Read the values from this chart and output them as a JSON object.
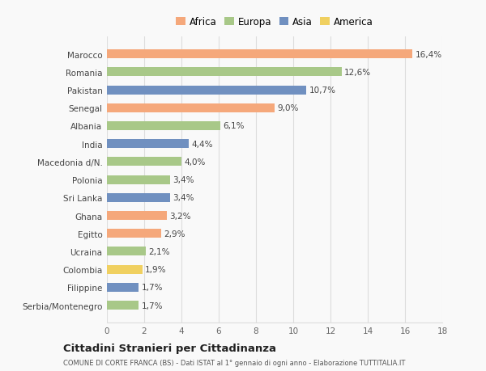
{
  "countries": [
    "Serbia/Montenegro",
    "Filippine",
    "Colombia",
    "Ucraina",
    "Egitto",
    "Ghana",
    "Sri Lanka",
    "Polonia",
    "Macedonia d/N.",
    "India",
    "Albania",
    "Senegal",
    "Pakistan",
    "Romania",
    "Marocco"
  ],
  "values": [
    1.7,
    1.7,
    1.9,
    2.1,
    2.9,
    3.2,
    3.4,
    3.4,
    4.0,
    4.4,
    6.1,
    9.0,
    10.7,
    12.6,
    16.4
  ],
  "labels": [
    "1,7%",
    "1,7%",
    "1,9%",
    "2,1%",
    "2,9%",
    "3,2%",
    "3,4%",
    "3,4%",
    "4,0%",
    "4,4%",
    "6,1%",
    "9,0%",
    "10,7%",
    "12,6%",
    "16,4%"
  ],
  "continents": [
    "Europa",
    "Asia",
    "America",
    "Europa",
    "Africa",
    "Africa",
    "Asia",
    "Europa",
    "Europa",
    "Asia",
    "Europa",
    "Africa",
    "Asia",
    "Europa",
    "Africa"
  ],
  "continent_colors": {
    "Africa": "#F5A87B",
    "Europa": "#A8C888",
    "Asia": "#7090C0",
    "America": "#F0D060"
  },
  "legend_order": [
    "Africa",
    "Europa",
    "Asia",
    "America"
  ],
  "xlim": [
    0,
    18
  ],
  "xticks": [
    0,
    2,
    4,
    6,
    8,
    10,
    12,
    14,
    16,
    18
  ],
  "title1": "Cittadini Stranieri per Cittadinanza",
  "title2": "COMUNE DI CORTE FRANCA (BS) - Dati ISTAT al 1° gennaio di ogni anno - Elaborazione TUTTITALIA.IT",
  "bg_color": "#f9f9f9",
  "grid_color": "#dddddd"
}
